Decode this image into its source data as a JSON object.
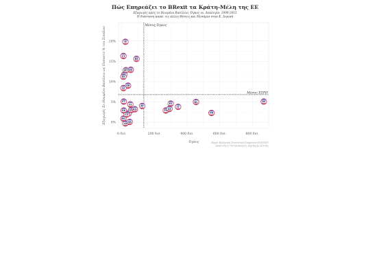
{
  "chart_data": {
    "type": "scatter",
    "title": "Πώς Επηρεάζει το BRexit τα Κράτη-Μέλη της ΕΕ",
    "subtitle_lines": [
      "Εξαγωγές προς το Ηνωμένο Βασίλειο, Όγκος vs. Αναλογία, 1999-2015",
      "Η διάσταση καπά: τις άλλες Θέσεις και Μεσάμια στην Κ. Δορική"
    ],
    "xlabel": "Όγκος",
    "ylabel": "Εξαγωγές Σε Ηνωμένο Βασίλειο ως Ποσοστό % του Συνόλου",
    "xlim": [
      -20,
      900
    ],
    "ylim": [
      -1.5,
      24.5
    ],
    "x_ticks": [
      {
        "value": 0,
        "label": "0 δισ."
      },
      {
        "value": 200,
        "label": "200 δισ."
      },
      {
        "value": 400,
        "label": "400 δισ."
      },
      {
        "value": 600,
        "label": "600 δισ."
      },
      {
        "value": 800,
        "label": "800 δισ."
      }
    ],
    "y_ticks": [
      {
        "value": 0,
        "label": "0%"
      },
      {
        "value": 5,
        "label": "5%"
      },
      {
        "value": 10,
        "label": "10%"
      },
      {
        "value": 15,
        "label": "15%"
      },
      {
        "value": 20,
        "label": "20%"
      }
    ],
    "grid": true,
    "vline": {
      "value": 135,
      "label": "Μέσος Όγκος"
    },
    "hline": {
      "value": 6.8,
      "label": "Μέσος ΕΞΡΗ"
    },
    "points": [
      {
        "x": 22,
        "y": 19.8,
        "code": "IE"
      },
      {
        "x": 10,
        "y": 16.3,
        "code": "CY"
      },
      {
        "x": 90,
        "y": 15.6,
        "code": "BE"
      },
      {
        "x": 55,
        "y": 12.9,
        "code": "DK"
      },
      {
        "x": 25,
        "y": 12.8,
        "code": "MT"
      },
      {
        "x": 15,
        "y": 11.7,
        "code": "LT"
      },
      {
        "x": 10,
        "y": 11.2,
        "code": "EE"
      },
      {
        "x": 38,
        "y": 9.0,
        "code": "GR"
      },
      {
        "x": 10,
        "y": 8.4,
        "code": "LV"
      },
      {
        "x": 12,
        "y": 5.1,
        "code": "PT"
      },
      {
        "x": 52,
        "y": 4.4,
        "code": "FI"
      },
      {
        "x": 125,
        "y": 4.0,
        "code": "AT"
      },
      {
        "x": 300,
        "y": 4.6,
        "code": "ES"
      },
      {
        "x": 345,
        "y": 3.8,
        "code": "IT"
      },
      {
        "x": 455,
        "y": 5.0,
        "code": "NL"
      },
      {
        "x": 870,
        "y": 5.1,
        "code": "DE"
      },
      {
        "x": 12,
        "y": 2.9,
        "code": "SK"
      },
      {
        "x": 42,
        "y": 2.2,
        "code": "SI"
      },
      {
        "x": 58,
        "y": 3.0,
        "code": "HU"
      },
      {
        "x": 80,
        "y": 3.2,
        "code": "RO"
      },
      {
        "x": 270,
        "y": 2.9,
        "code": "PL"
      },
      {
        "x": 292,
        "y": 3.3,
        "code": "SE"
      },
      {
        "x": 550,
        "y": 2.3,
        "code": "FR"
      },
      {
        "x": 10,
        "y": 0.9,
        "code": "BG"
      },
      {
        "x": 22,
        "y": -0.3,
        "code": "LU"
      },
      {
        "x": 48,
        "y": 0.1,
        "code": "HR"
      },
      {
        "x": 30,
        "y": 1.9,
        "code": "CZ"
      }
    ],
    "caption_lines": [
      "Πηγή: Ελληνική Στατιστική Υπηρεσία (ΕΛΣΤΑΤ)",
      "Ανάλυση & Οπτικοποίηση: Δημήτρης Σέτσας"
    ]
  }
}
